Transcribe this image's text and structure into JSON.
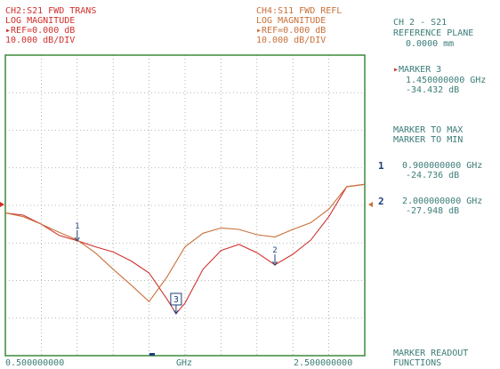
{
  "ch1": {
    "title": "CH2:S21 FWD TRANS",
    "format": "LOG MAGNITUDE",
    "ref": "REF=0.000 dB",
    "scale": "10.000 dB/DIV"
  },
  "ch2": {
    "title": "CH4:S11 FWD REFL",
    "format": "LOG MAGNITUDE",
    "ref": "REF=0.000 dB",
    "scale": "10.000 dB/DIV"
  },
  "menu": {
    "line1": "CH 2 - S21",
    "line2": "REFERENCE PLANE",
    "line3": "0.0000 mm",
    "marker3_label": "MARKER 3",
    "marker3_freq": "1.450000000 GHz",
    "marker3_value": "-34.432 dB",
    "to_max": "MARKER TO MAX",
    "to_min": "MARKER TO MIN",
    "m1_num": "1",
    "m1_freq": "0.900000000 GHz",
    "m1_value": "-24.736 dB",
    "m2_num": "2",
    "m2_freq": "2.000000000 GHz",
    "m2_value": "-27.948 dB",
    "readout1": "MARKER READOUT",
    "readout2": "FUNCTIONS"
  },
  "axis": {
    "start": "0.500000000",
    "unit": "GHz",
    "stop": "2.500000000"
  },
  "colors": {
    "s21": "#d0312d",
    "s11": "#c8703a",
    "grid": "#9aa59a",
    "frame": "#3a8a3a",
    "marker": "#1c3f78"
  },
  "chart_data": {
    "type": "line",
    "xlabel": "GHz",
    "ylabel": "",
    "xlim": [
      0.5,
      2.5
    ],
    "ylim": [
      -40,
      0
    ],
    "x_ticks": [
      "0.500000000",
      "2.500000000"
    ],
    "grid": true,
    "series": [
      {
        "name": "CH2:S21 FWD TRANS",
        "x": [
          0.5,
          0.6,
          0.7,
          0.8,
          0.9,
          1.0,
          1.1,
          1.2,
          1.3,
          1.4,
          1.45,
          1.5,
          1.6,
          1.7,
          1.8,
          1.9,
          2.0,
          2.1,
          2.2,
          2.3,
          2.4,
          2.5
        ],
        "values": [
          -21.0,
          -21.3,
          -22.5,
          -24.0,
          -24.7,
          -25.5,
          -26.2,
          -27.4,
          -29.0,
          -32.5,
          -34.4,
          -33.0,
          -28.5,
          -26.0,
          -25.2,
          -26.3,
          -27.9,
          -26.5,
          -24.6,
          -21.5,
          -17.5,
          -17.2
        ]
      },
      {
        "name": "CH4:S11 FWD REFL",
        "x": [
          0.5,
          0.6,
          0.7,
          0.8,
          0.9,
          1.0,
          1.1,
          1.2,
          1.3,
          1.4,
          1.5,
          1.6,
          1.7,
          1.8,
          1.9,
          2.0,
          2.1,
          2.2,
          2.3,
          2.4,
          2.5
        ],
        "values": [
          -21.0,
          -21.5,
          -22.5,
          -23.6,
          -24.6,
          -26.3,
          -28.5,
          -30.6,
          -32.8,
          -29.5,
          -25.5,
          -23.7,
          -23.0,
          -23.2,
          -23.9,
          -24.2,
          -23.2,
          -22.3,
          -20.5,
          -17.5,
          -17.2
        ]
      }
    ],
    "markers": [
      {
        "label": "1",
        "x": 0.9,
        "y": -24.736,
        "series": 0
      },
      {
        "label": "2",
        "x": 2.0,
        "y": -27.948,
        "series": 0
      },
      {
        "label": "3",
        "x": 1.45,
        "y": -34.432,
        "series": 0,
        "active": true
      }
    ]
  }
}
